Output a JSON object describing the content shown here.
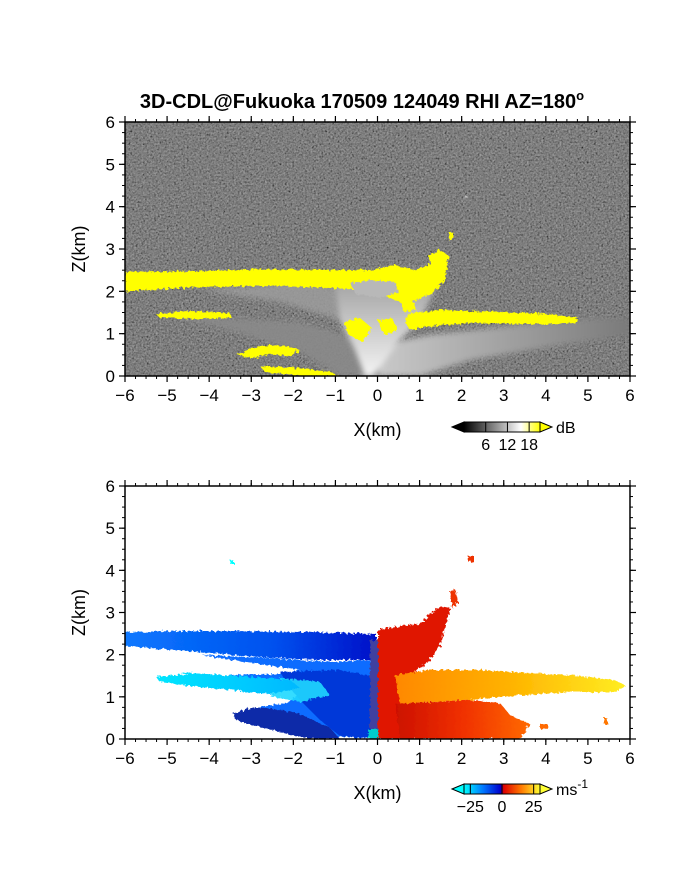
{
  "chart_data": [
    {
      "type": "heatmap",
      "panel": "reflectivity",
      "title": "3D-CDL@Fukuoka 170509 124049 RHI AZ=180",
      "title_superscript": "o",
      "xlabel": "X(km)",
      "ylabel": "Z(km)",
      "xlim": [
        -6,
        6
      ],
      "ylim": [
        0,
        6
      ],
      "xticks": [
        "-6",
        "-5",
        "-4",
        "-3",
        "-2",
        "-1",
        "0",
        "1",
        "2",
        "3",
        "4",
        "5",
        "6"
      ],
      "yticks": [
        "0",
        "1",
        "2",
        "3",
        "4",
        "5",
        "6"
      ],
      "colorbar": {
        "unit": "dB",
        "ticks": [
          "6",
          "12",
          "18"
        ],
        "range": [
          0,
          21
        ]
      },
      "colors": {
        "background": "#2a2a2a",
        "saturated": "#ffff00"
      },
      "features": [
        {
          "name": "upper layer",
          "x": [
            -6,
            1.5
          ],
          "z": [
            2.0,
            2.5
          ],
          "value_db": 20
        },
        {
          "name": "middle layer left",
          "x": [
            -5.3,
            -3.5
          ],
          "z": [
            1.4,
            1.55
          ],
          "value_db": 20
        },
        {
          "name": "middle layer right",
          "x": [
            0.9,
            4.7
          ],
          "z": [
            1.3,
            1.6
          ],
          "value_db": 20
        },
        {
          "name": "lower layer",
          "x": [
            -3.3,
            -1.8
          ],
          "z": [
            0.45,
            0.75
          ],
          "value_db": 20
        },
        {
          "name": "plume",
          "x": [
            -1.5,
            1.5
          ],
          "z": [
            0.0,
            2.4
          ],
          "value_db": 12
        },
        {
          "name": "near-surface echo",
          "x": [
            -1,
            6
          ],
          "z": [
            0.0,
            1.3
          ],
          "value_db": 9
        }
      ]
    },
    {
      "type": "heatmap",
      "panel": "doppler velocity",
      "xlabel": "X(km)",
      "ylabel": "Z(km)",
      "xlim": [
        -6,
        6
      ],
      "ylim": [
        0,
        6
      ],
      "xticks": [
        "-6",
        "-5",
        "-4",
        "-3",
        "-2",
        "-1",
        "0",
        "1",
        "2",
        "3",
        "4",
        "5",
        "6"
      ],
      "yticks": [
        "0",
        "1",
        "2",
        "3",
        "4",
        "5",
        "6"
      ],
      "colorbar": {
        "unit": "ms",
        "unit_superscript": "-1",
        "ticks": [
          "-25",
          "0",
          "25"
        ],
        "range": [
          -30,
          30
        ]
      },
      "features": [
        {
          "name": "upper layer",
          "x": [
            -6,
            0
          ],
          "z": [
            2.0,
            2.5
          ],
          "velocity": -15
        },
        {
          "name": "middle layer left",
          "x": [
            -5.3,
            -3.5
          ],
          "z": [
            1.35,
            1.55
          ],
          "velocity": -25
        },
        {
          "name": "middle wedge",
          "x": [
            -3.5,
            0
          ],
          "z": [
            0.8,
            1.5
          ],
          "velocity": -22
        },
        {
          "name": "lower left",
          "x": [
            -3.4,
            0
          ],
          "z": [
            0.0,
            0.75
          ],
          "velocity": -12
        },
        {
          "name": "near-zero strip",
          "x": [
            -0.1,
            0.1
          ],
          "z": [
            0.0,
            2.4
          ],
          "velocity": 0
        },
        {
          "name": "plume right",
          "x": [
            0,
            2
          ],
          "z": [
            0.0,
            3.5
          ],
          "velocity": 12
        },
        {
          "name": "middle layer right",
          "x": [
            1,
            6
          ],
          "z": [
            1.05,
            1.55
          ],
          "velocity": 22
        },
        {
          "name": "lower right",
          "x": [
            1,
            4.2
          ],
          "z": [
            0.0,
            1.0
          ],
          "velocity": 16
        }
      ]
    }
  ]
}
